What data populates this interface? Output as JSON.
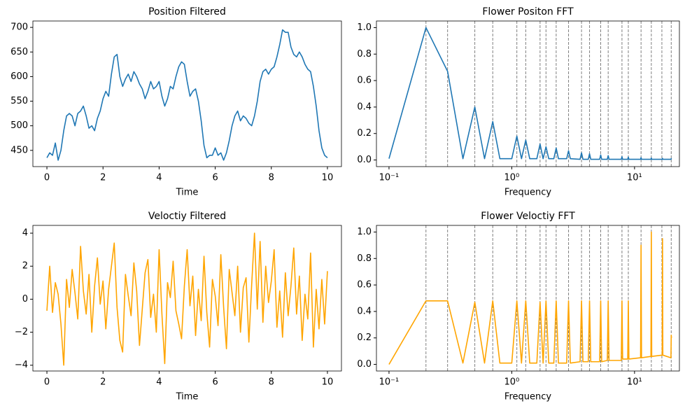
{
  "chart_data": [
    {
      "type": "line",
      "title": "Position Filtered",
      "xlabel": "Time",
      "color": "#1f77b4",
      "x": [
        0,
        0.1,
        0.2,
        0.3,
        0.4,
        0.5,
        0.6,
        0.7,
        0.8,
        0.9,
        1,
        1.1,
        1.2,
        1.3,
        1.4,
        1.5,
        1.6,
        1.7,
        1.8,
        1.9,
        2,
        2.1,
        2.2,
        2.3,
        2.4,
        2.5,
        2.6,
        2.7,
        2.8,
        2.9,
        3,
        3.1,
        3.2,
        3.3,
        3.4,
        3.5,
        3.6,
        3.7,
        3.8,
        3.9,
        4,
        4.1,
        4.2,
        4.3,
        4.4,
        4.5,
        4.6,
        4.7,
        4.8,
        4.9,
        5,
        5.1,
        5.2,
        5.3,
        5.4,
        5.5,
        5.6,
        5.7,
        5.8,
        5.9,
        6,
        6.1,
        6.2,
        6.3,
        6.4,
        6.5,
        6.6,
        6.7,
        6.8,
        6.9,
        7,
        7.1,
        7.2,
        7.3,
        7.4,
        7.5,
        7.6,
        7.7,
        7.8,
        7.9,
        8,
        8.1,
        8.2,
        8.3,
        8.4,
        8.5,
        8.6,
        8.7,
        8.8,
        8.9,
        9,
        9.1,
        9.2,
        9.3,
        9.4,
        9.5,
        9.6,
        9.7,
        9.8,
        9.9,
        10
      ],
      "values": [
        435,
        445,
        440,
        465,
        430,
        450,
        490,
        520,
        525,
        520,
        500,
        525,
        530,
        540,
        520,
        495,
        500,
        490,
        515,
        530,
        555,
        570,
        560,
        605,
        640,
        645,
        600,
        580,
        595,
        605,
        590,
        610,
        600,
        585,
        575,
        555,
        570,
        590,
        575,
        580,
        590,
        560,
        540,
        555,
        580,
        575,
        600,
        620,
        630,
        625,
        590,
        560,
        570,
        575,
        550,
        510,
        460,
        435,
        440,
        440,
        455,
        440,
        445,
        430,
        445,
        470,
        500,
        520,
        530,
        510,
        520,
        515,
        505,
        500,
        520,
        550,
        590,
        610,
        615,
        605,
        615,
        620,
        640,
        665,
        695,
        690,
        690,
        660,
        645,
        640,
        650,
        640,
        625,
        615,
        610,
        580,
        540,
        490,
        455,
        440,
        435
      ],
      "xlim": [
        -0.5,
        10.5
      ],
      "xticks": [
        0,
        2,
        4,
        6,
        8,
        10
      ],
      "ylim": [
        417,
        713
      ],
      "yticks": [
        450,
        500,
        550,
        600,
        650,
        700
      ]
    },
    {
      "type": "line",
      "title": "Flower Positon FFT",
      "xlabel": "Frequency",
      "color": "#1f77b4",
      "xscale": "log",
      "x": [
        0.1,
        0.2,
        0.3,
        0.4,
        0.5,
        0.6,
        0.7,
        0.8,
        1.0,
        1.1,
        1.2,
        1.3,
        1.4,
        1.6,
        1.7,
        1.8,
        1.9,
        2.0,
        2.2,
        2.3,
        2.4,
        2.8,
        2.9,
        3.0,
        3.6,
        3.7,
        3.8,
        4.2,
        4.3,
        4.4,
        5.2,
        5.3,
        5.4,
        6.0,
        6.1,
        6.2,
        7.8,
        7.9,
        8.0,
        8.8,
        8.9,
        9.0,
        11.2,
        11.3,
        11.4,
        13.6,
        13.7,
        13.8,
        16.8,
        16.9,
        17.0,
        19.8,
        19.9,
        20.0
      ],
      "values": [
        0.01,
        1.0,
        0.67,
        0.01,
        0.4,
        0.01,
        0.29,
        0.01,
        0.01,
        0.18,
        0.01,
        0.15,
        0.01,
        0.01,
        0.12,
        0.01,
        0.1,
        0.01,
        0.01,
        0.09,
        0.01,
        0.01,
        0.07,
        0.01,
        0.005,
        0.054,
        0.005,
        0.005,
        0.047,
        0.005,
        0.005,
        0.038,
        0.005,
        0.005,
        0.033,
        0.005,
        0.005,
        0.025,
        0.005,
        0.005,
        0.022,
        0.005,
        0.005,
        0.018,
        0.005,
        0.005,
        0.015,
        0.005,
        0.005,
        0.012,
        0.005,
        0.005,
        0.01,
        0.005
      ],
      "vlines": [
        0.2,
        0.3,
        0.5,
        0.7,
        1.1,
        1.3,
        1.7,
        1.9,
        2.3,
        2.9,
        3.7,
        4.3,
        5.3,
        6.1,
        7.9,
        8.9,
        11.3,
        13.7,
        16.7,
        19.9
      ],
      "vline_color": "#808080",
      "xlim": [
        0.079,
        23.2
      ],
      "xticks": [
        {
          "value": 0.1,
          "label": "10⁻¹"
        },
        {
          "value": 1,
          "label": "10⁰"
        },
        {
          "value": 10,
          "label": "10¹"
        }
      ],
      "ylim": [
        -0.05,
        1.05
      ],
      "yticks": [
        {
          "value": 0,
          "label": "0.0"
        },
        0.2,
        0.4,
        0.6,
        0.8,
        {
          "value": 1,
          "label": "1.0"
        }
      ]
    },
    {
      "type": "line",
      "title": "Veloctiy Filtered",
      "xlabel": "Time",
      "color": "#ffa500",
      "x": [
        0,
        0.1,
        0.2,
        0.3,
        0.4,
        0.5,
        0.6,
        0.7,
        0.8,
        0.9,
        1,
        1.1,
        1.2,
        1.3,
        1.4,
        1.5,
        1.6,
        1.7,
        1.8,
        1.9,
        2,
        2.1,
        2.2,
        2.3,
        2.4,
        2.5,
        2.6,
        2.7,
        2.8,
        2.9,
        3,
        3.1,
        3.2,
        3.3,
        3.4,
        3.5,
        3.6,
        3.7,
        3.8,
        3.9,
        4,
        4.1,
        4.2,
        4.3,
        4.4,
        4.5,
        4.6,
        4.7,
        4.8,
        4.9,
        5,
        5.1,
        5.2,
        5.3,
        5.4,
        5.5,
        5.6,
        5.7,
        5.8,
        5.9,
        6,
        6.1,
        6.2,
        6.3,
        6.4,
        6.5,
        6.6,
        6.7,
        6.8,
        6.9,
        7,
        7.1,
        7.2,
        7.3,
        7.4,
        7.5,
        7.6,
        7.7,
        7.8,
        7.9,
        8,
        8.1,
        8.2,
        8.3,
        8.4,
        8.5,
        8.6,
        8.7,
        8.8,
        8.9,
        9,
        9.1,
        9.2,
        9.3,
        9.4,
        9.5,
        9.6,
        9.7,
        9.8,
        9.9,
        10
      ],
      "values": [
        -0.7,
        2.0,
        -0.8,
        1.0,
        0.3,
        -1.5,
        -4.0,
        1.2,
        -0.5,
        1.8,
        0.4,
        -1.2,
        3.2,
        0.5,
        -0.9,
        1.5,
        -2.0,
        0.8,
        2.5,
        -0.3,
        1.1,
        -1.8,
        0.6,
        2.0,
        3.4,
        -0.5,
        -2.5,
        -3.2,
        1.5,
        0.2,
        -1.0,
        2.2,
        0.5,
        -2.8,
        -0.6,
        1.6,
        2.4,
        -1.1,
        0.3,
        -2.0,
        3.0,
        -0.9,
        -3.9,
        1.0,
        0.1,
        2.3,
        -0.7,
        -1.5,
        -2.4,
        0.8,
        3.0,
        -0.4,
        1.4,
        -2.2,
        0.6,
        -1.3,
        2.6,
        -0.8,
        -2.9,
        1.2,
        0.2,
        -1.6,
        2.7,
        -0.5,
        -3.0,
        1.8,
        0.4,
        -1.0,
        2.0,
        -2.0,
        0.7,
        1.3,
        -2.6,
        0.9,
        4.0,
        -0.6,
        3.5,
        -1.4,
        2.0,
        -0.2,
        1.1,
        3.0,
        -1.7,
        0.5,
        -2.3,
        1.6,
        -1.0,
        0.8,
        3.1,
        -0.9,
        1.4,
        -2.5,
        0.3,
        -1.2,
        2.8,
        -2.9,
        0.6,
        -1.8,
        1.2,
        -1.5,
        1.7
      ],
      "xlim": [
        -0.5,
        10.5
      ],
      "xticks": [
        0,
        2,
        4,
        6,
        8,
        10
      ],
      "ylim": [
        -4.35,
        4.47
      ],
      "yticks": [
        {
          "value": -4,
          "label": "−4"
        },
        {
          "value": -2,
          "label": "−2"
        },
        0,
        2,
        4
      ]
    },
    {
      "type": "line",
      "title": "Flower Veloctiy FFT",
      "xlabel": "Frequency",
      "color": "#ffa500",
      "xscale": "log",
      "x": [
        0.1,
        0.2,
        0.3,
        0.4,
        0.5,
        0.6,
        0.7,
        0.8,
        1.0,
        1.1,
        1.2,
        1.3,
        1.4,
        1.6,
        1.7,
        1.8,
        1.9,
        2.0,
        2.2,
        2.3,
        2.4,
        2.8,
        2.9,
        3.0,
        3.6,
        3.7,
        3.8,
        4.2,
        4.3,
        4.4,
        5.2,
        5.3,
        5.4,
        6.0,
        6.1,
        6.2,
        7.8,
        7.9,
        8.0,
        8.8,
        8.9,
        9.0,
        11.2,
        11.3,
        11.4,
        13.6,
        13.7,
        13.8,
        16.8,
        16.9,
        17.0,
        19.8,
        19.9,
        20.0
      ],
      "values": [
        0.0,
        0.48,
        0.48,
        0.01,
        0.47,
        0.01,
        0.48,
        0.01,
        0.01,
        0.48,
        0.01,
        0.48,
        0.01,
        0.01,
        0.47,
        0.01,
        0.48,
        0.01,
        0.01,
        0.48,
        0.01,
        0.01,
        0.48,
        0.01,
        0.02,
        0.48,
        0.02,
        0.02,
        0.48,
        0.02,
        0.02,
        0.48,
        0.02,
        0.03,
        0.48,
        0.03,
        0.03,
        0.48,
        0.04,
        0.04,
        0.48,
        0.04,
        0.05,
        0.9,
        0.05,
        0.06,
        1.0,
        0.06,
        0.07,
        0.95,
        0.07,
        0.05,
        0.22,
        0.2
      ],
      "vlines": [
        0.2,
        0.3,
        0.5,
        0.7,
        1.1,
        1.3,
        1.7,
        1.9,
        2.3,
        2.9,
        3.7,
        4.3,
        5.3,
        6.1,
        7.9,
        8.9,
        11.3,
        13.7,
        16.7,
        19.9
      ],
      "vline_color": "#808080",
      "xlim": [
        0.079,
        23.2
      ],
      "xticks": [
        {
          "value": 0.1,
          "label": "10⁻¹"
        },
        {
          "value": 1,
          "label": "10⁰"
        },
        {
          "value": 10,
          "label": "10¹"
        }
      ],
      "ylim": [
        -0.05,
        1.05
      ],
      "yticks": [
        {
          "value": 0,
          "label": "0.0"
        },
        0.2,
        0.4,
        0.6,
        0.8,
        {
          "value": 1,
          "label": "1.0"
        }
      ]
    }
  ]
}
